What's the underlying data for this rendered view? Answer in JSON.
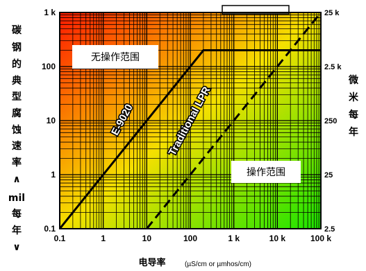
{
  "chart_data": {
    "type": "line",
    "x_scale": "log",
    "y_scale": "log",
    "xlim": [
      0.1,
      100000
    ],
    "ylim": [
      0.1,
      1000
    ],
    "x_ticks": [
      "0.1",
      "1",
      "10",
      "100",
      "1 k",
      "10 k",
      "100 k"
    ],
    "y_ticks": [
      "0.1",
      "1",
      "10",
      "100",
      "1 k"
    ],
    "y2_ticks": [
      "2.5",
      "25",
      "250",
      "2.5 k",
      "25 k"
    ],
    "xlabel": "电导率",
    "xunit": "(µS/cm or µmhos/cm)",
    "ylabel_left": [
      "碳",
      "钢",
      "的",
      "典",
      "型",
      "腐",
      "蚀",
      "速",
      "率",
      "∧",
      "mil",
      "每",
      "年",
      "∨"
    ],
    "ylabel_right": [
      "微",
      "米",
      "每",
      "年"
    ],
    "grid": true,
    "series": [
      {
        "name": "E-9020",
        "style": "solid",
        "x": [
          0.1,
          200,
          100000
        ],
        "y": [
          0.1,
          200,
          200
        ]
      },
      {
        "name": "Traditional LPR",
        "style": "dashed",
        "x": [
          10,
          100000
        ],
        "y": [
          0.1,
          1000
        ]
      }
    ],
    "annotations": [
      {
        "text": "无操作范围",
        "x": 2,
        "y": 110
      },
      {
        "text": "操作范围",
        "x": 2000,
        "y": 1
      }
    ],
    "background": {
      "type": "gradient",
      "from_color": "#ff1a00",
      "mid_color": "#f5e000",
      "to_color": "#19e400"
    }
  }
}
